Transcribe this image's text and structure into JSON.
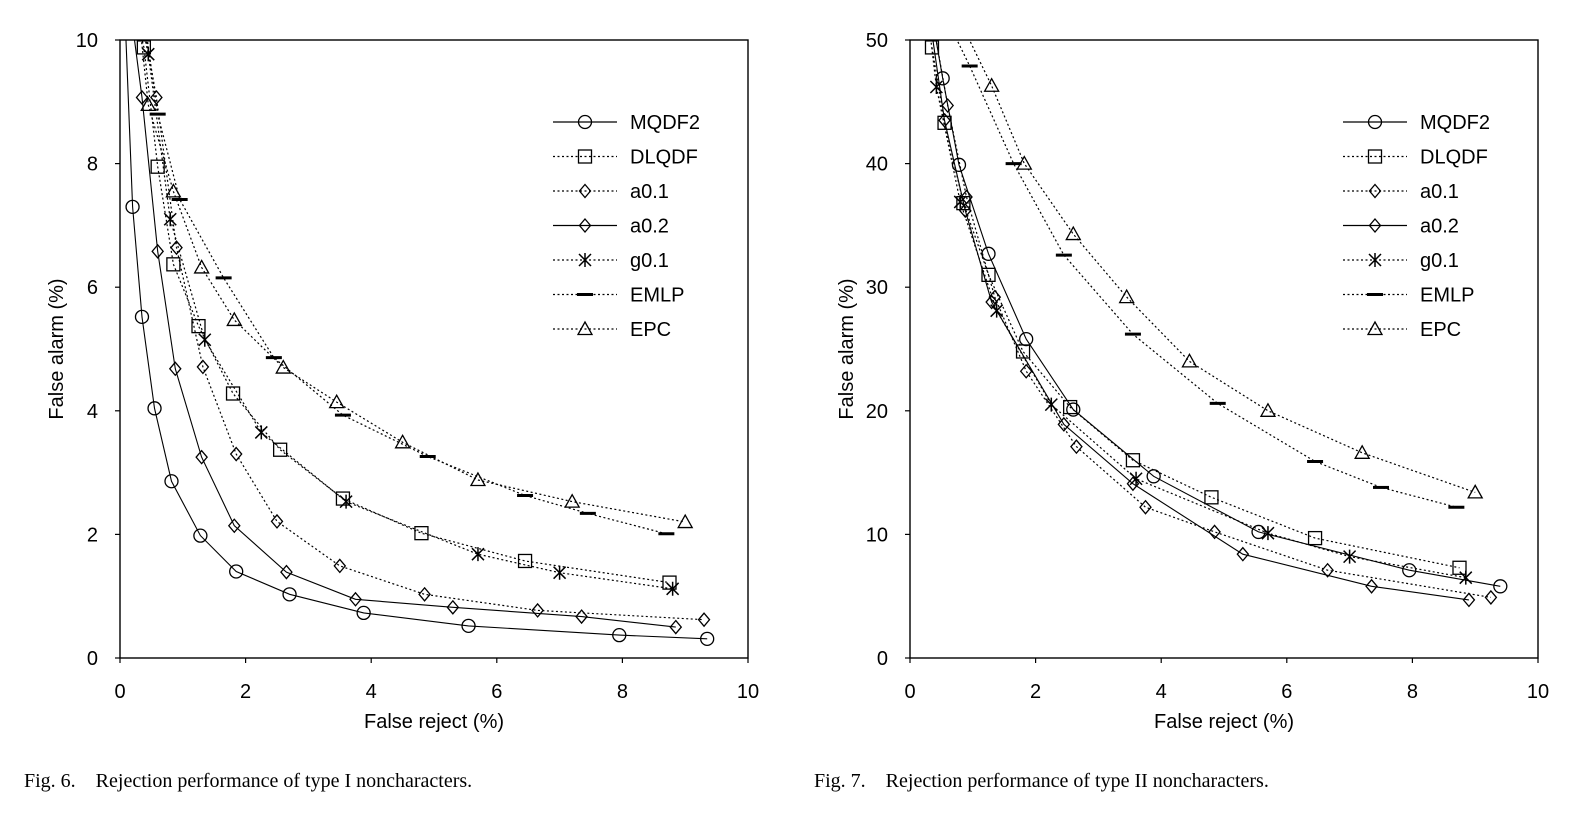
{
  "chart_data": [
    {
      "type": "line",
      "xlabel": "False reject (%)",
      "ylabel": "False alarm (%)",
      "xlim": [
        0,
        10
      ],
      "ylim": [
        0,
        10
      ],
      "xticks": [
        "0",
        "2",
        "4",
        "6",
        "8",
        "10"
      ],
      "yticks": [
        "0",
        "2",
        "4",
        "6",
        "8",
        "10"
      ],
      "legend_position": "top-right",
      "series": [
        {
          "name": "MQDF2",
          "marker": "circle",
          "line": "solid",
          "points": [
            [
              0.08,
              10.4
            ],
            [
              0.2,
              7.3
            ],
            [
              0.35,
              5.52
            ],
            [
              0.55,
              4.04
            ],
            [
              0.82,
              2.86
            ],
            [
              1.28,
              1.98
            ],
            [
              1.85,
              1.4
            ],
            [
              2.7,
              1.03
            ],
            [
              3.88,
              0.73
            ],
            [
              5.55,
              0.52
            ],
            [
              7.95,
              0.37
            ],
            [
              9.35,
              0.31
            ]
          ]
        },
        {
          "name": "DLQDF",
          "marker": "square",
          "line": "dotted",
          "points": [
            [
              0.25,
              10.4
            ],
            [
              0.38,
              9.88
            ],
            [
              0.6,
              7.95
            ],
            [
              0.85,
              6.37
            ],
            [
              1.25,
              5.37
            ],
            [
              1.8,
              4.28
            ],
            [
              2.55,
              3.37
            ],
            [
              3.55,
              2.58
            ],
            [
              4.8,
              2.02
            ],
            [
              6.45,
              1.57
            ],
            [
              8.75,
              1.22
            ]
          ]
        },
        {
          "name": "a0.1",
          "marker": "diamond",
          "line": "dotted",
          "points": [
            [
              0.35,
              10.4
            ],
            [
              0.58,
              9.07
            ],
            [
              0.9,
              6.64
            ],
            [
              1.32,
              4.71
            ],
            [
              1.85,
              3.3
            ],
            [
              2.5,
              2.21
            ],
            [
              3.5,
              1.49
            ],
            [
              4.85,
              1.03
            ],
            [
              6.65,
              0.77
            ],
            [
              9.3,
              0.62
            ]
          ]
        },
        {
          "name": "a0.2",
          "marker": "diamond",
          "line": "solid",
          "points": [
            [
              0.18,
              10.4
            ],
            [
              0.35,
              9.07
            ],
            [
              0.6,
              6.58
            ],
            [
              0.88,
              4.68
            ],
            [
              1.3,
              3.25
            ],
            [
              1.82,
              2.14
            ],
            [
              2.65,
              1.39
            ],
            [
              3.75,
              0.95
            ],
            [
              5.3,
              0.82
            ],
            [
              7.35,
              0.67
            ],
            [
              8.85,
              0.5
            ]
          ]
        },
        {
          "name": "g0.1",
          "marker": "asterisk",
          "line": "dotted",
          "points": [
            [
              0.32,
              10.4
            ],
            [
              0.45,
              9.77
            ],
            [
              0.8,
              7.1
            ],
            [
              1.35,
              5.15
            ],
            [
              2.25,
              3.65
            ],
            [
              3.6,
              2.53
            ],
            [
              5.7,
              1.68
            ],
            [
              7.0,
              1.38
            ],
            [
              8.8,
              1.12
            ]
          ]
        },
        {
          "name": "EMLP",
          "marker": "dash",
          "line": "dotted",
          "points": [
            [
              0.38,
              10.4
            ],
            [
              0.6,
              8.8
            ],
            [
              0.95,
              7.42
            ],
            [
              1.65,
              6.15
            ],
            [
              2.45,
              4.86
            ],
            [
              3.55,
              3.93
            ],
            [
              4.9,
              3.26
            ],
            [
              6.45,
              2.63
            ],
            [
              7.45,
              2.34
            ],
            [
              8.7,
              2.01
            ]
          ]
        },
        {
          "name": "EPC",
          "marker": "triangle",
          "line": "dotted",
          "points": [
            [
              0.3,
              10.4
            ],
            [
              0.45,
              8.95
            ],
            [
              0.85,
              7.55
            ],
            [
              1.3,
              6.32
            ],
            [
              1.82,
              5.47
            ],
            [
              2.6,
              4.7
            ],
            [
              3.45,
              4.14
            ],
            [
              4.5,
              3.49
            ],
            [
              5.7,
              2.88
            ],
            [
              7.2,
              2.53
            ],
            [
              9.0,
              2.2
            ]
          ]
        }
      ]
    },
    {
      "type": "line",
      "xlabel": "False reject (%)",
      "ylabel": "False alarm (%)",
      "xlim": [
        0,
        10
      ],
      "ylim": [
        0,
        50
      ],
      "xticks": [
        "0",
        "2",
        "4",
        "6",
        "8",
        "10"
      ],
      "yticks": [
        "0",
        "10",
        "20",
        "30",
        "40",
        "50"
      ],
      "legend_position": "top-right",
      "series": [
        {
          "name": "MQDF2",
          "marker": "circle",
          "line": "solid",
          "points": [
            [
              0.38,
              51
            ],
            [
              0.52,
              46.9
            ],
            [
              0.78,
              39.9
            ],
            [
              1.25,
              32.7
            ],
            [
              1.85,
              25.8
            ],
            [
              2.6,
              20.1
            ],
            [
              3.88,
              14.7
            ],
            [
              5.55,
              10.2
            ],
            [
              7.95,
              7.1
            ],
            [
              9.4,
              5.8
            ]
          ]
        },
        {
          "name": "DLQDF",
          "marker": "square",
          "line": "dotted",
          "points": [
            [
              0.35,
              49.4
            ],
            [
              0.55,
              43.3
            ],
            [
              0.85,
              36.8
            ],
            [
              1.25,
              31.0
            ],
            [
              1.8,
              24.8
            ],
            [
              2.55,
              20.3
            ],
            [
              3.55,
              16.0
            ],
            [
              4.8,
              13.0
            ],
            [
              6.45,
              9.7
            ],
            [
              8.75,
              7.3
            ]
          ]
        },
        {
          "name": "a0.1",
          "marker": "diamond",
          "line": "dotted",
          "points": [
            [
              0.4,
              50.5
            ],
            [
              0.6,
              44.7
            ],
            [
              0.9,
              37.3
            ],
            [
              1.35,
              29.2
            ],
            [
              1.85,
              23.2
            ],
            [
              2.65,
              17.1
            ],
            [
              3.75,
              12.2
            ],
            [
              4.85,
              10.2
            ],
            [
              6.65,
              7.1
            ],
            [
              9.25,
              4.9
            ]
          ]
        },
        {
          "name": "a0.2",
          "marker": "diamond",
          "line": "solid",
          "points": [
            [
              0.35,
              50.5
            ],
            [
              0.55,
              43.5
            ],
            [
              0.88,
              36.2
            ],
            [
              1.3,
              28.8
            ],
            [
              2.45,
              18.9
            ],
            [
              3.55,
              14.1
            ],
            [
              5.3,
              8.4
            ],
            [
              7.35,
              5.8
            ],
            [
              8.9,
              4.7
            ]
          ]
        },
        {
          "name": "g0.1",
          "marker": "asterisk",
          "line": "dotted",
          "points": [
            [
              0.32,
              50.5
            ],
            [
              0.42,
              46.2
            ],
            [
              0.8,
              36.9
            ],
            [
              1.38,
              28.1
            ],
            [
              2.25,
              20.5
            ],
            [
              3.6,
              14.5
            ],
            [
              5.7,
              10.1
            ],
            [
              7.0,
              8.2
            ],
            [
              8.85,
              6.5
            ]
          ]
        },
        {
          "name": "EMLP",
          "marker": "dash",
          "line": "dotted",
          "points": [
            [
              0.7,
              50.5
            ],
            [
              0.95,
              47.9
            ],
            [
              1.65,
              40.0
            ],
            [
              2.45,
              32.6
            ],
            [
              3.55,
              26.2
            ],
            [
              4.9,
              20.6
            ],
            [
              6.45,
              15.9
            ],
            [
              7.5,
              13.8
            ],
            [
              8.7,
              12.2
            ]
          ]
        },
        {
          "name": "EPC",
          "marker": "triangle",
          "line": "dotted",
          "points": [
            [
              0.9,
              50.5
            ],
            [
              1.3,
              46.3
            ],
            [
              1.82,
              40.0
            ],
            [
              2.6,
              34.3
            ],
            [
              3.45,
              29.2
            ],
            [
              4.45,
              24.0
            ],
            [
              5.7,
              20.0
            ],
            [
              7.2,
              16.6
            ],
            [
              9.0,
              13.4
            ]
          ]
        }
      ]
    }
  ],
  "captions": {
    "fig6": "Fig. 6.    Rejection performance of type I noncharacters.",
    "fig7": "Fig. 7.    Rejection performance of type II noncharacters."
  }
}
